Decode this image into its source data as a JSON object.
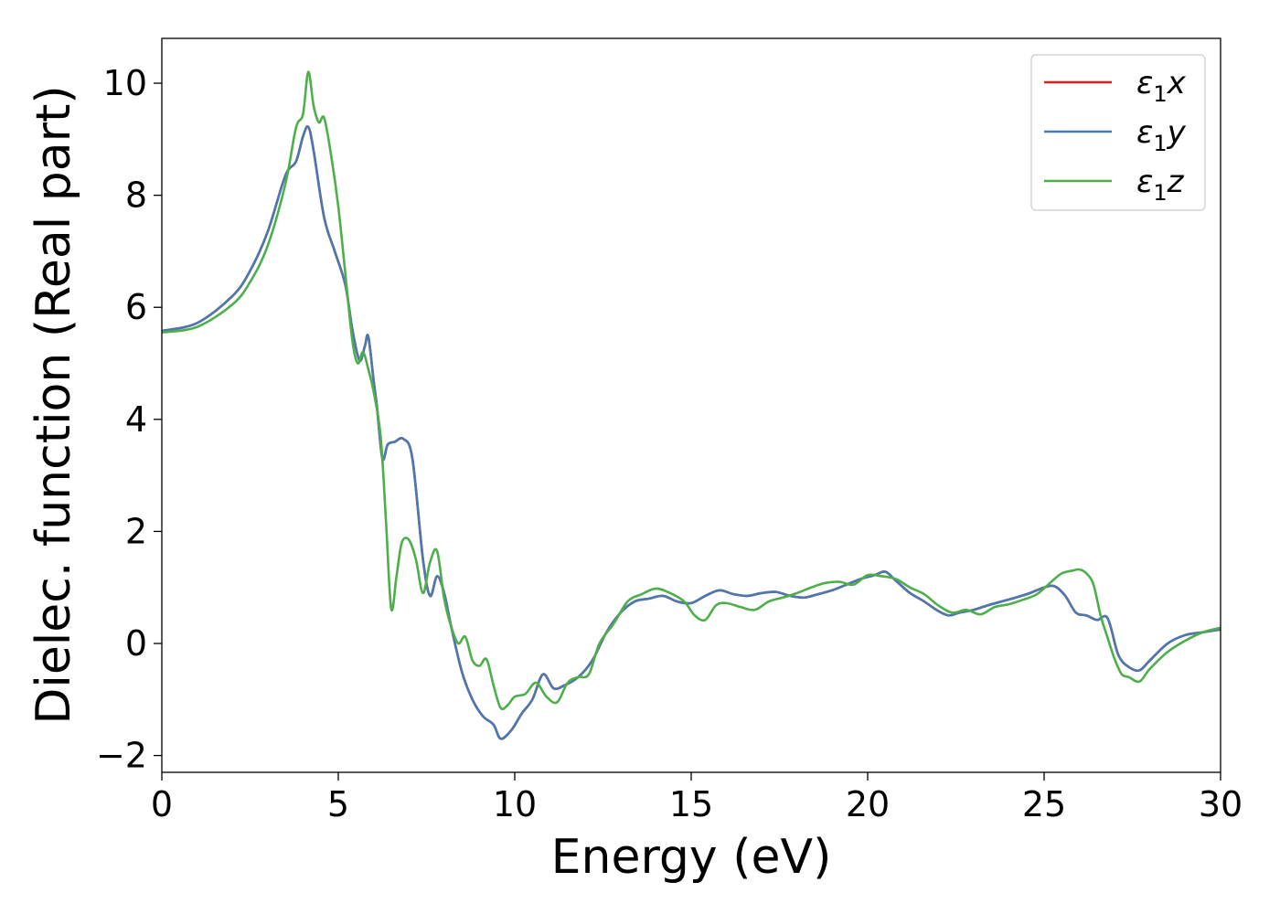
{
  "chart_data": {
    "type": "line",
    "title": "",
    "xlabel": "Energy (eV)",
    "ylabel": "Dielec. function (Real part)",
    "xlim": [
      0,
      30
    ],
    "ylim": [
      -2.3,
      10.8
    ],
    "xticks": [
      0,
      5,
      10,
      15,
      20,
      25,
      30
    ],
    "xtick_labels": [
      "0",
      "5",
      "10",
      "15",
      "20",
      "25",
      "30"
    ],
    "yticks": [
      -2,
      0,
      2,
      4,
      6,
      8,
      10
    ],
    "ytick_labels": [
      "−2",
      "0",
      "2",
      "4",
      "6",
      "8",
      "10"
    ],
    "grid": false,
    "legend_position": "top-right",
    "series": [
      {
        "name": "ε₁x",
        "legend": {
          "main": "ε",
          "sub": "1",
          "var": "x"
        },
        "color": "#e41a1c",
        "x": [
          0,
          1,
          2,
          2.5,
          3,
          3.5,
          3.8,
          4,
          4.15,
          4.3,
          4.6,
          4.9,
          5.2,
          5.4,
          5.6,
          5.75,
          5.85,
          6.0,
          6.1,
          6.25,
          6.4,
          6.6,
          6.85,
          7.1,
          7.4,
          7.6,
          7.8,
          8.0,
          8.2,
          8.5,
          8.8,
          9.1,
          9.4,
          9.6,
          9.9,
          10.2,
          10.5,
          10.8,
          11.1,
          11.4,
          11.8,
          12.2,
          12.6,
          13.0,
          13.4,
          13.8,
          14.2,
          14.6,
          15.0,
          15.4,
          15.8,
          16.2,
          16.6,
          17.0,
          17.4,
          17.8,
          18.2,
          18.6,
          19.0,
          19.4,
          19.8,
          20.2,
          20.5,
          20.8,
          21.2,
          21.6,
          22.0,
          22.3,
          22.6,
          23.0,
          23.4,
          23.8,
          24.2,
          24.6,
          25.0,
          25.3,
          25.6,
          25.9,
          26.2,
          26.5,
          26.8,
          27.1,
          27.4,
          27.7,
          28.0,
          28.5,
          29.0,
          29.5,
          30.0
        ],
        "y": [
          5.58,
          5.72,
          6.2,
          6.65,
          7.35,
          8.35,
          8.6,
          9.05,
          9.22,
          8.8,
          7.6,
          7.0,
          6.4,
          5.6,
          5.05,
          5.3,
          5.48,
          4.7,
          4.2,
          3.3,
          3.55,
          3.6,
          3.65,
          3.3,
          1.5,
          0.85,
          1.2,
          0.9,
          0.3,
          -0.5,
          -1.0,
          -1.3,
          -1.45,
          -1.7,
          -1.55,
          -1.25,
          -1.0,
          -0.55,
          -0.8,
          -0.75,
          -0.6,
          -0.3,
          0.2,
          0.55,
          0.75,
          0.8,
          0.85,
          0.75,
          0.72,
          0.85,
          0.95,
          0.88,
          0.85,
          0.9,
          0.92,
          0.85,
          0.82,
          0.88,
          0.95,
          1.05,
          1.15,
          1.22,
          1.28,
          1.12,
          0.9,
          0.75,
          0.58,
          0.5,
          0.55,
          0.6,
          0.68,
          0.75,
          0.82,
          0.9,
          1.0,
          1.02,
          0.85,
          0.55,
          0.5,
          0.42,
          0.45,
          -0.2,
          -0.42,
          -0.48,
          -0.3,
          0.0,
          0.15,
          0.2,
          0.25
        ]
      },
      {
        "name": "ε₁y",
        "legend": {
          "main": "ε",
          "sub": "1",
          "var": "y"
        },
        "color": "#4a78b0",
        "x": [
          0,
          1,
          2,
          2.5,
          3,
          3.5,
          3.8,
          4,
          4.15,
          4.3,
          4.6,
          4.9,
          5.2,
          5.4,
          5.6,
          5.75,
          5.85,
          6.0,
          6.1,
          6.25,
          6.4,
          6.6,
          6.85,
          7.1,
          7.4,
          7.6,
          7.8,
          8.0,
          8.2,
          8.5,
          8.8,
          9.1,
          9.4,
          9.6,
          9.9,
          10.2,
          10.5,
          10.8,
          11.1,
          11.4,
          11.8,
          12.2,
          12.6,
          13.0,
          13.4,
          13.8,
          14.2,
          14.6,
          15.0,
          15.4,
          15.8,
          16.2,
          16.6,
          17.0,
          17.4,
          17.8,
          18.2,
          18.6,
          19.0,
          19.4,
          19.8,
          20.2,
          20.5,
          20.8,
          21.2,
          21.6,
          22.0,
          22.3,
          22.6,
          23.0,
          23.4,
          23.8,
          24.2,
          24.6,
          25.0,
          25.3,
          25.6,
          25.9,
          26.2,
          26.5,
          26.8,
          27.1,
          27.4,
          27.7,
          28.0,
          28.5,
          29.0,
          29.5,
          30.0
        ],
        "y": [
          5.58,
          5.72,
          6.2,
          6.65,
          7.35,
          8.35,
          8.6,
          9.05,
          9.22,
          8.8,
          7.6,
          7.0,
          6.4,
          5.6,
          5.05,
          5.3,
          5.48,
          4.7,
          4.2,
          3.3,
          3.55,
          3.6,
          3.65,
          3.3,
          1.5,
          0.85,
          1.2,
          0.9,
          0.3,
          -0.5,
          -1.0,
          -1.3,
          -1.45,
          -1.7,
          -1.55,
          -1.25,
          -1.0,
          -0.55,
          -0.8,
          -0.75,
          -0.6,
          -0.3,
          0.2,
          0.55,
          0.75,
          0.8,
          0.85,
          0.75,
          0.72,
          0.85,
          0.95,
          0.88,
          0.85,
          0.9,
          0.92,
          0.85,
          0.82,
          0.88,
          0.95,
          1.05,
          1.15,
          1.22,
          1.28,
          1.12,
          0.9,
          0.75,
          0.58,
          0.5,
          0.55,
          0.6,
          0.68,
          0.75,
          0.82,
          0.9,
          1.0,
          1.02,
          0.85,
          0.55,
          0.5,
          0.42,
          0.45,
          -0.2,
          -0.42,
          -0.48,
          -0.3,
          0.0,
          0.15,
          0.2,
          0.25
        ]
      },
      {
        "name": "ε₁z",
        "legend": {
          "main": "ε",
          "sub": "1",
          "var": "z"
        },
        "color": "#4daf4a",
        "x": [
          0,
          1,
          2,
          2.5,
          3,
          3.5,
          3.8,
          4,
          4.15,
          4.3,
          4.45,
          4.6,
          4.8,
          5.0,
          5.2,
          5.4,
          5.55,
          5.7,
          5.85,
          6.0,
          6.2,
          6.35,
          6.5,
          6.65,
          6.8,
          7.0,
          7.2,
          7.4,
          7.6,
          7.8,
          8.0,
          8.2,
          8.4,
          8.6,
          8.8,
          9.0,
          9.2,
          9.4,
          9.6,
          9.8,
          10.0,
          10.3,
          10.6,
          10.9,
          11.2,
          11.5,
          11.8,
          12.1,
          12.4,
          12.8,
          13.2,
          13.6,
          14.0,
          14.4,
          14.8,
          15.1,
          15.4,
          15.7,
          16.0,
          16.4,
          16.8,
          17.2,
          17.6,
          18.0,
          18.4,
          18.8,
          19.2,
          19.6,
          20.0,
          20.4,
          20.8,
          21.2,
          21.6,
          22.0,
          22.4,
          22.8,
          23.2,
          23.6,
          24.0,
          24.4,
          24.8,
          25.2,
          25.5,
          25.8,
          26.0,
          26.2,
          26.4,
          26.6,
          26.8,
          27.0,
          27.2,
          27.4,
          27.7,
          28.0,
          28.5,
          29.0,
          29.5,
          30.0
        ],
        "y": [
          5.55,
          5.65,
          6.05,
          6.45,
          7.1,
          8.2,
          9.2,
          9.45,
          10.2,
          9.6,
          9.3,
          9.38,
          8.7,
          7.8,
          6.6,
          5.4,
          5.0,
          5.2,
          4.9,
          4.5,
          3.7,
          2.2,
          0.62,
          1.2,
          1.8,
          1.85,
          1.5,
          0.9,
          1.45,
          1.65,
          0.8,
          0.3,
          0.0,
          0.12,
          -0.3,
          -0.4,
          -0.28,
          -0.75,
          -1.15,
          -1.1,
          -0.95,
          -0.9,
          -0.7,
          -0.95,
          -1.05,
          -0.7,
          -0.6,
          -0.55,
          0.0,
          0.35,
          0.75,
          0.88,
          0.98,
          0.9,
          0.75,
          0.5,
          0.42,
          0.68,
          0.72,
          0.65,
          0.6,
          0.75,
          0.82,
          0.9,
          1.0,
          1.08,
          1.1,
          1.05,
          1.22,
          1.2,
          1.15,
          1.0,
          0.88,
          0.68,
          0.55,
          0.6,
          0.52,
          0.65,
          0.7,
          0.78,
          0.88,
          1.1,
          1.25,
          1.3,
          1.32,
          1.25,
          1.05,
          0.5,
          0.1,
          -0.28,
          -0.55,
          -0.6,
          -0.68,
          -0.45,
          -0.15,
          0.05,
          0.2,
          0.28
        ]
      }
    ]
  }
}
